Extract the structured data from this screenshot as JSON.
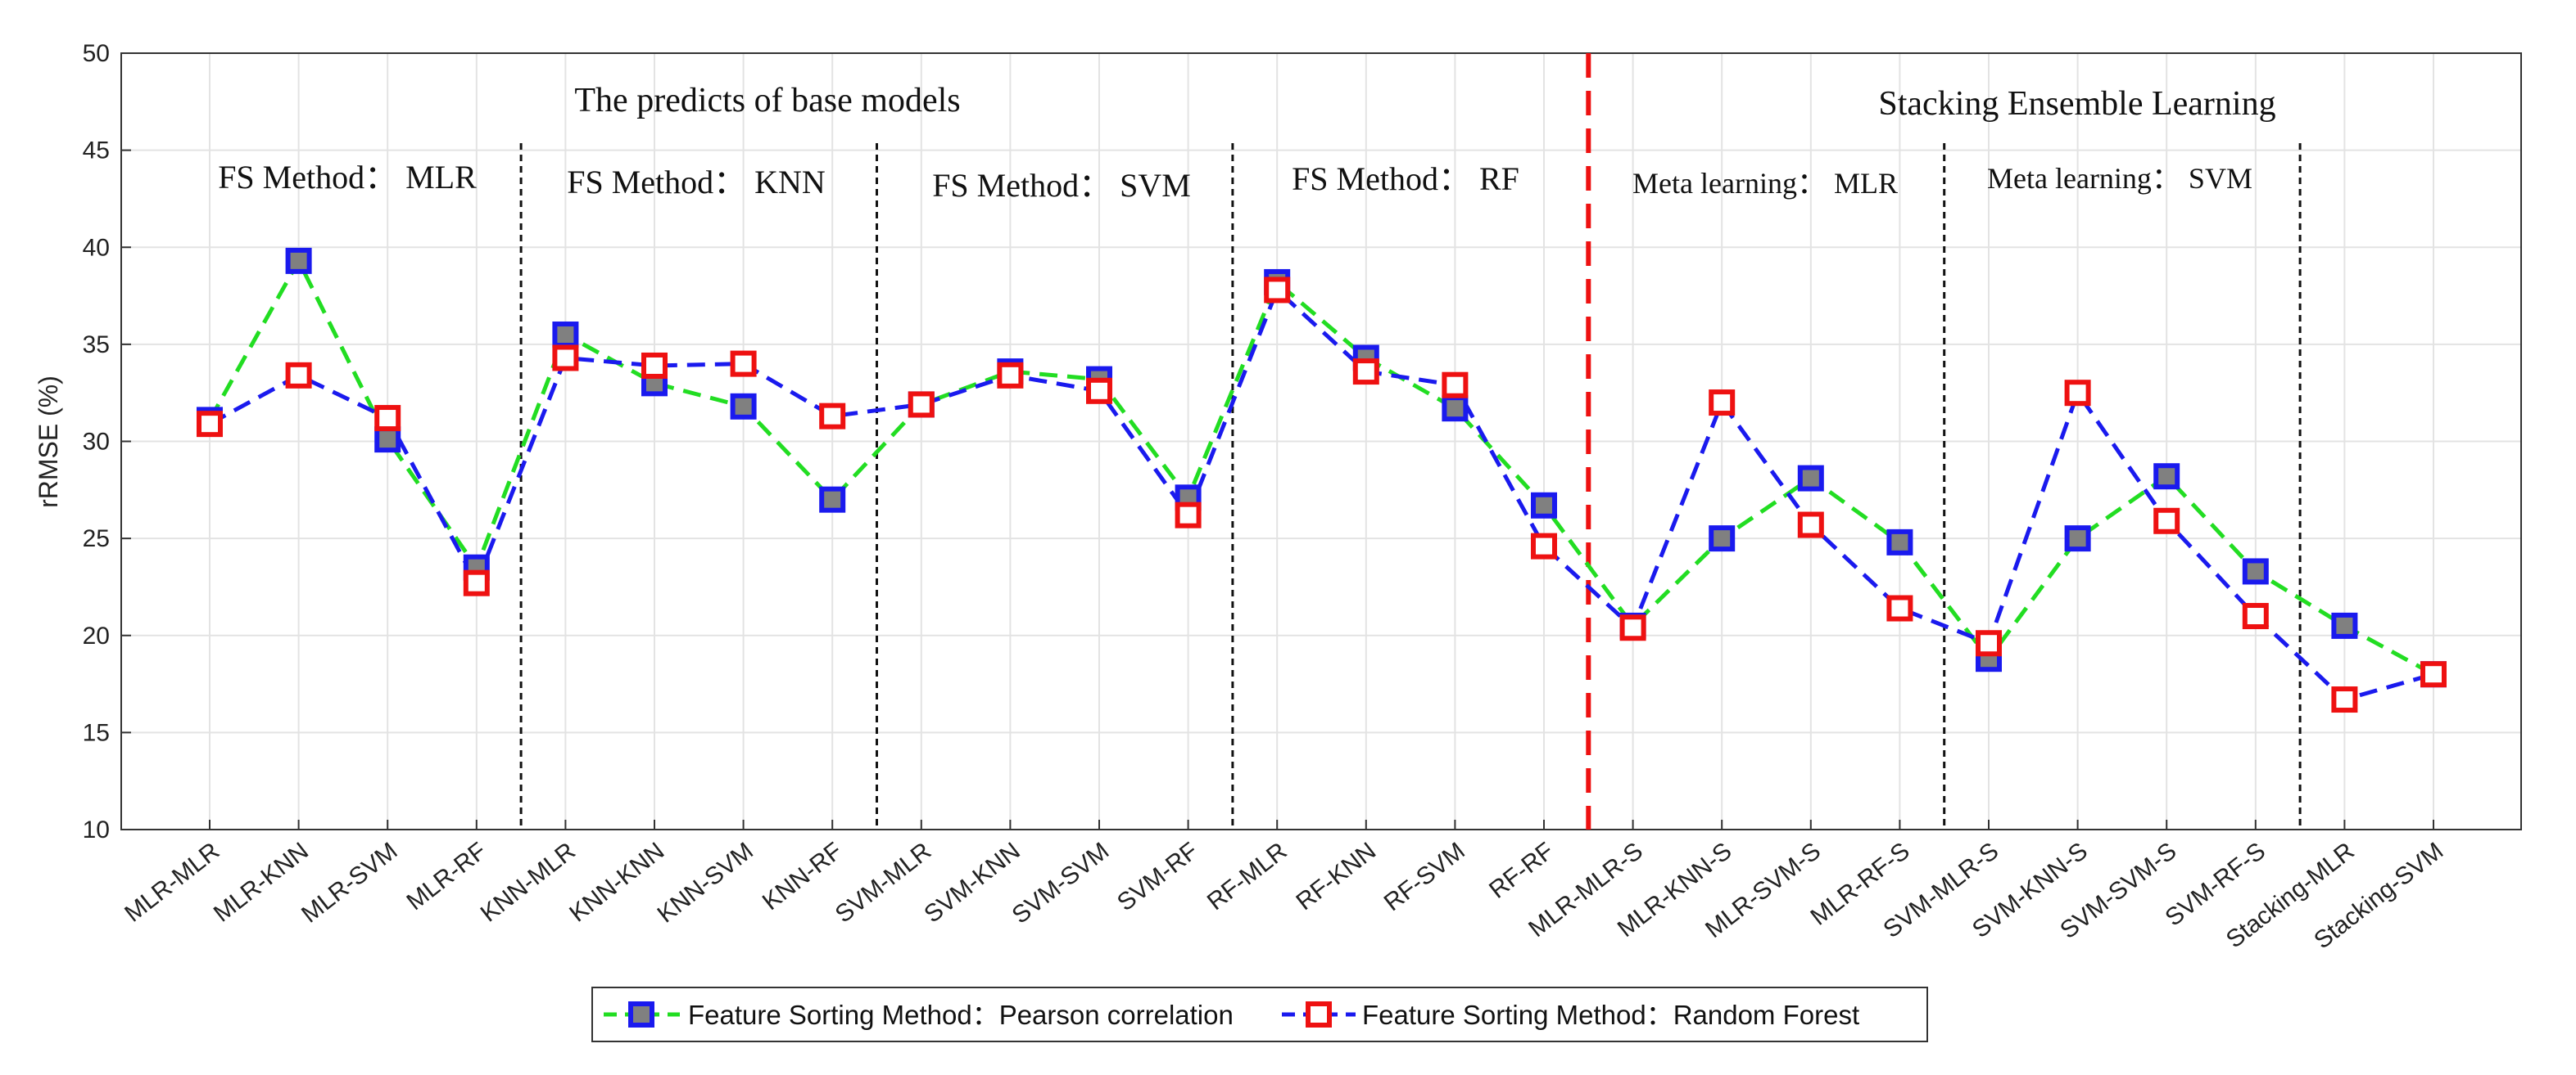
{
  "chart_data": {
    "type": "line",
    "title": "",
    "xlabel": "",
    "ylabel": "rRMSE (%)",
    "ylim": [
      10,
      50
    ],
    "yticks": [
      10,
      15,
      20,
      25,
      30,
      35,
      40,
      45,
      50
    ],
    "grid": true,
    "categories": [
      "MLR-MLR",
      "MLR-KNN",
      "MLR-SVM",
      "MLR-RF",
      "KNN-MLR",
      "KNN-KNN",
      "KNN-SVM",
      "KNN-RF",
      "SVM-MLR",
      "SVM-KNN",
      "SVM-SVM",
      "SVM-RF",
      "RF-MLR",
      "RF-KNN",
      "RF-SVM",
      "RF-RF",
      "MLR-MLR-S",
      "MLR-KNN-S",
      "MLR-SVM-S",
      "MLR-RF-S",
      "SVM-MLR-S",
      "SVM-KNN-S",
      "SVM-SVM-S",
      "SVM-RF-S",
      "Stacking-MLR",
      "Stacking-SVM"
    ],
    "series": [
      {
        "name": "Feature Sorting Method：Pearson correlation",
        "line_color": "#22dd22",
        "marker_edge": "#1a1aee",
        "marker_fill": "#808080",
        "values": [
          31.1,
          39.3,
          30.1,
          23.5,
          35.5,
          33.0,
          31.8,
          27.0,
          31.9,
          33.6,
          33.2,
          27.1,
          38.2,
          34.3,
          31.7,
          26.7,
          20.5,
          25.0,
          28.1,
          24.8,
          18.8,
          25.0,
          28.2,
          23.3,
          20.5,
          18.0
        ]
      },
      {
        "name": "Feature Sorting Method：Random Forest",
        "line_color": "#1a1aee",
        "marker_edge": "#ee1111",
        "marker_fill": "#ffffff",
        "values": [
          30.9,
          33.4,
          31.2,
          22.7,
          34.3,
          33.9,
          34.0,
          31.3,
          31.9,
          33.4,
          32.6,
          26.2,
          37.8,
          33.6,
          32.9,
          24.6,
          20.4,
          32.0,
          25.7,
          21.4,
          19.6,
          32.5,
          25.9,
          21.0,
          16.7,
          18.0
        ]
      }
    ],
    "annotations": {
      "base_title": "The predicts of base models",
      "stacking_title": "Stacking Ensemble Learning",
      "groups": [
        "FS Method：  MLR",
        "FS Method：  KNN",
        "FS Method：  SVM",
        "FS Method：  RF",
        "Meta learning：  MLR",
        "Meta learning：  SVM"
      ]
    },
    "legend_position": "bottom-center"
  }
}
